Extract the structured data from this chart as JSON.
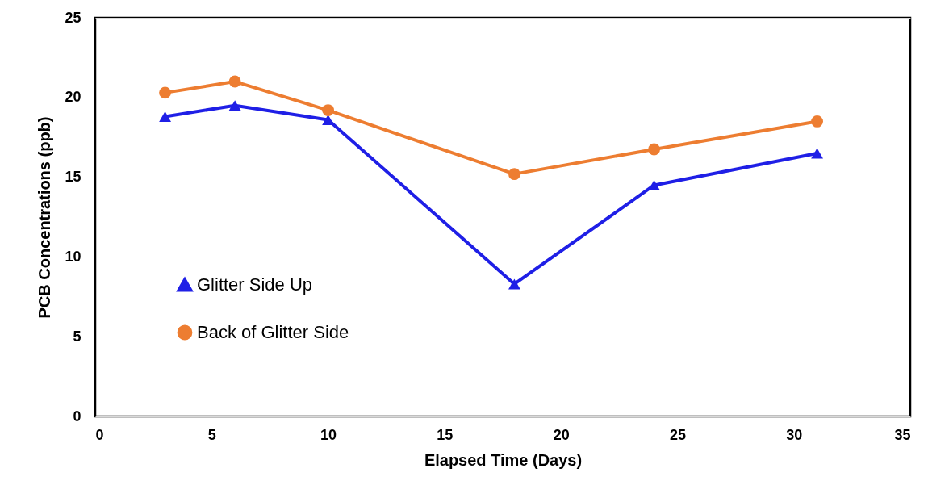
{
  "chart_data": {
    "type": "line",
    "xlabel": "Elapsed Time (Days)",
    "ylabel": "PCB Concentrations (ppb)",
    "x": [
      3,
      6,
      10,
      18,
      24,
      31
    ],
    "series": [
      {
        "name": "Glitter Side Up",
        "color": "#1f1fe6",
        "marker": "triangle",
        "values": [
          18.8,
          19.5,
          18.6,
          8.3,
          14.5,
          16.5
        ]
      },
      {
        "name": "Back of Glitter Side",
        "color": "#ed7d31",
        "marker": "circle",
        "values": [
          20.3,
          21.0,
          19.2,
          15.2,
          16.75,
          18.5
        ]
      }
    ],
    "xlim": [
      0,
      35
    ],
    "xticks": [
      0,
      5,
      10,
      15,
      20,
      25,
      30,
      35
    ],
    "ylim": [
      0,
      25
    ],
    "yticks": [
      0,
      5,
      10,
      15,
      20,
      25
    ],
    "grid": "y",
    "legend": "left",
    "line_style": "solid"
  }
}
